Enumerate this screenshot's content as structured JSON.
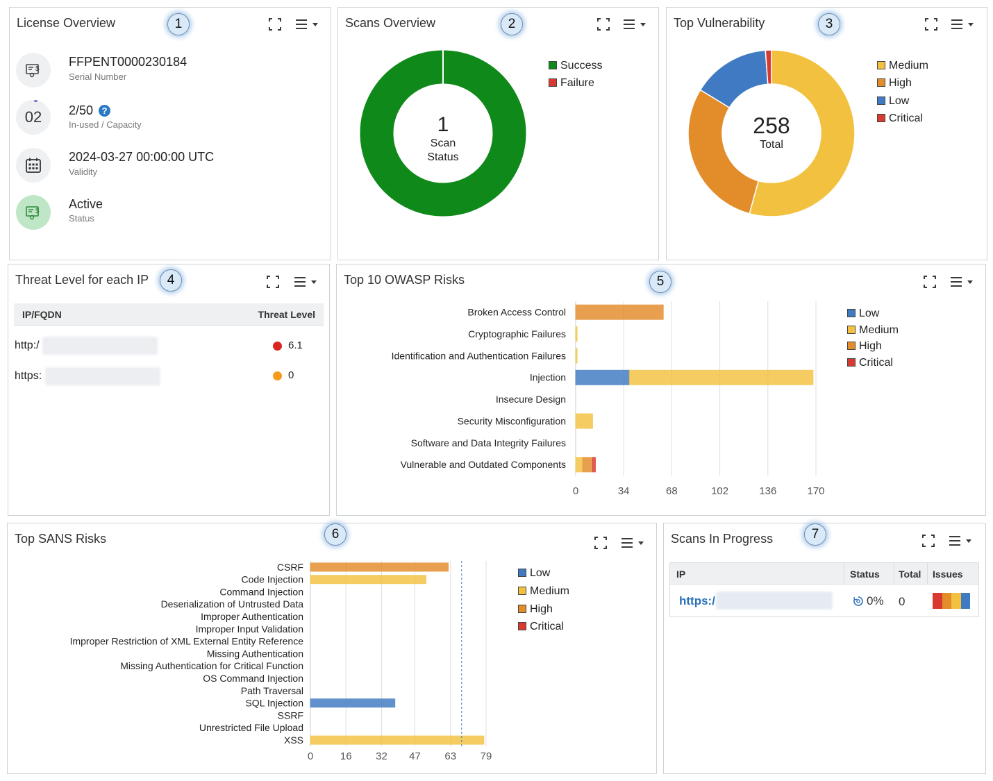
{
  "colors": {
    "low": "#3f7ac2",
    "medium": "#f2c13f",
    "high": "#e38c2a",
    "critical": "#d83a32",
    "success": "#0f8a1a",
    "failure": "#d83a32"
  },
  "license": {
    "title": "License Overview",
    "badge": "1",
    "serial_value": "FFPENT0000230184",
    "serial_label": "Serial Number",
    "capacity_icon_text": "02",
    "capacity_value": "2/50",
    "capacity_label": "In-used / Capacity",
    "capacity_help": "?",
    "validity_value": "2024-03-27 00:00:00 UTC",
    "validity_label": "Validity",
    "status_value": "Active",
    "status_label": "Status"
  },
  "scans_overview": {
    "title": "Scans Overview",
    "badge": "2",
    "center_value": "1",
    "center_line1": "Scan",
    "center_line2": "Status",
    "legend": [
      {
        "label": "Success",
        "color": "#0f8a1a"
      },
      {
        "label": "Failure",
        "color": "#d83a32"
      }
    ]
  },
  "top_vulnerability": {
    "title": "Top Vulnerability",
    "badge": "3",
    "center_value": "258",
    "center_label": "Total",
    "legend": [
      {
        "label": "Medium",
        "color": "#f2c13f"
      },
      {
        "label": "High",
        "color": "#e38c2a"
      },
      {
        "label": "Low",
        "color": "#3f7ac2"
      },
      {
        "label": "Critical",
        "color": "#d83a32"
      }
    ]
  },
  "threat_level": {
    "title": "Threat Level for each IP",
    "badge": "4",
    "col_ip": "IP/FQDN",
    "col_threat": "Threat Level",
    "rows": [
      {
        "ip_prefix": "http:/",
        "level": "6.1",
        "dot": "#d9261c"
      },
      {
        "ip_prefix": "https:",
        "level": "0",
        "dot": "#f59a1b"
      }
    ]
  },
  "owasp": {
    "title": "Top 10 OWASP Risks",
    "badge": "5",
    "legend": [
      {
        "label": "Low",
        "color": "#3f7ac2"
      },
      {
        "label": "Medium",
        "color": "#f2c13f"
      },
      {
        "label": "High",
        "color": "#e38c2a"
      },
      {
        "label": "Critical",
        "color": "#d83a32"
      }
    ]
  },
  "sans": {
    "title": "Top SANS Risks",
    "badge": "6",
    "legend": [
      {
        "label": "Low",
        "color": "#3f7ac2"
      },
      {
        "label": "Medium",
        "color": "#f2c13f"
      },
      {
        "label": "High",
        "color": "#e38c2a"
      },
      {
        "label": "Critical",
        "color": "#d83a32"
      }
    ]
  },
  "scans_in_progress": {
    "title": "Scans In Progress",
    "badge": "7",
    "col_ip": "IP",
    "col_status": "Status",
    "col_total": "Total",
    "col_issues": "Issues",
    "row": {
      "ip_prefix": "https:/",
      "status": "0%",
      "total": "0"
    }
  },
  "chart_data": [
    {
      "type": "pie",
      "name": "scans_overview",
      "labels": [
        "Success",
        "Failure"
      ],
      "values": [
        1,
        0
      ]
    },
    {
      "type": "pie",
      "name": "top_vulnerability",
      "labels": [
        "Medium",
        "High",
        "Low",
        "Critical"
      ],
      "values": [
        140,
        76,
        39,
        3
      ],
      "total": 258
    },
    {
      "type": "bar",
      "orientation": "horizontal",
      "stacked": true,
      "name": "owasp",
      "categories": [
        "Broken Access Control",
        "Cryptographic Failures",
        "Identification and Authentication Failures",
        "Injection",
        "Insecure Design",
        "Security Misconfiguration",
        "Software and Data Integrity Failures",
        "Vulnerable and Outdated Components"
      ],
      "series": [
        {
          "name": "Low",
          "values": [
            0,
            0,
            0,
            38,
            0,
            0,
            0,
            0
          ]
        },
        {
          "name": "Medium",
          "values": [
            0,
            1,
            1,
            130,
            0,
            12,
            0,
            5
          ]
        },
        {
          "name": "High",
          "values": [
            62,
            0,
            0,
            0,
            0,
            0,
            0,
            7
          ]
        },
        {
          "name": "Critical",
          "values": [
            0,
            0,
            0,
            0,
            0,
            0,
            0,
            2
          ]
        }
      ],
      "xticks": [
        0,
        34,
        68,
        102,
        136,
        170
      ],
      "xlim": [
        0,
        170
      ],
      "grid": true,
      "legend": "right"
    },
    {
      "type": "bar",
      "orientation": "horizontal",
      "stacked": true,
      "name": "sans",
      "categories": [
        "CSRF",
        "Code Injection",
        "Command Injection",
        "Deserialization of Untrusted Data",
        "Improper Authentication",
        "Improper Input Validation",
        "Improper Restriction of XML External Entity Reference",
        "Missing Authentication",
        "Missing Authentication for Critical Function",
        "OS Command Injection",
        "Path Traversal",
        "SQL Injection",
        "SSRF",
        "Unrestricted File Upload",
        "XSS"
      ],
      "series": [
        {
          "name": "Low",
          "values": [
            0,
            0,
            0,
            0,
            0,
            0,
            0,
            0,
            0,
            0,
            0,
            38,
            0,
            0,
            0
          ]
        },
        {
          "name": "Medium",
          "values": [
            0,
            52,
            0,
            0,
            0,
            0,
            0,
            0,
            0,
            0,
            0,
            0,
            0,
            0,
            78
          ]
        },
        {
          "name": "High",
          "values": [
            62,
            0,
            0,
            0,
            0,
            0,
            0,
            0,
            0,
            0,
            0,
            0,
            0,
            0,
            0
          ]
        },
        {
          "name": "Critical",
          "values": [
            0,
            0,
            0,
            0,
            0,
            0,
            0,
            0,
            0,
            0,
            0,
            0,
            0,
            0,
            0
          ]
        }
      ],
      "xticks": [
        0,
        16,
        32,
        47,
        63,
        79
      ],
      "xlim": [
        0,
        79
      ],
      "reference_line": 68,
      "grid": true,
      "legend": "right"
    }
  ]
}
